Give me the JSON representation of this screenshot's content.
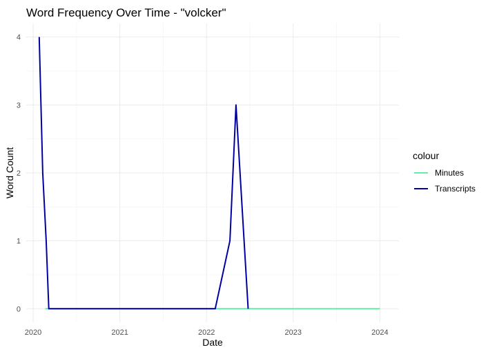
{
  "chart_data": {
    "type": "line",
    "title": "Word Frequency Over Time - \"volcker\"",
    "xlabel": "Date",
    "ylabel": "Word Count",
    "x_ticks": [
      "2020",
      "2021",
      "2022",
      "2023",
      "2024"
    ],
    "y_ticks": [
      "0",
      "1",
      "2",
      "3",
      "4"
    ],
    "xlim": [
      2019.92,
      2024.22
    ],
    "ylim": [
      -0.2,
      4.2
    ],
    "grid": true,
    "legend": {
      "title": "colour",
      "placement": "right"
    },
    "series": [
      {
        "name": "Minutes",
        "color": "#5ef0a8",
        "x": [
          2020.14,
          2024.0
        ],
        "y": [
          0,
          0
        ]
      },
      {
        "name": "Transcripts",
        "color": "#0000a0",
        "x": [
          2020.07,
          2020.11,
          2020.15,
          2020.18,
          2022.1,
          2022.27,
          2022.34,
          2022.48
        ],
        "y": [
          4,
          2,
          1,
          0,
          0,
          1,
          3,
          0
        ]
      }
    ]
  }
}
